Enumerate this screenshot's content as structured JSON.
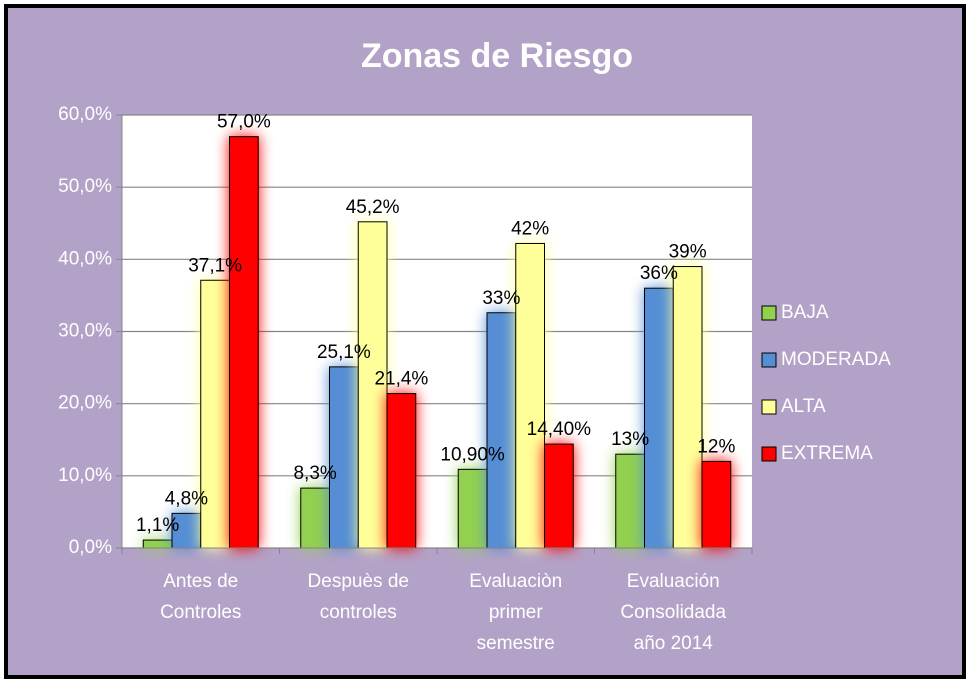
{
  "chart_data": {
    "type": "bar",
    "title": "Zonas de Riesgo",
    "categories": [
      "Antes de Controles",
      "Despuès de controles",
      "Evaluaciòn primer semestre",
      "Evaluación Consolidada año 2014"
    ],
    "series": [
      {
        "name": "BAJA",
        "color": "#92d050",
        "values": [
          1.1,
          8.3,
          10.9,
          13
        ],
        "value_labels": [
          "1,1%",
          "8,3%",
          "10,90%",
          "13%"
        ]
      },
      {
        "name": "MODERADA",
        "color": "#558ed5",
        "values": [
          4.8,
          25.1,
          32.6,
          36
        ],
        "value_labels": [
          "4,8%",
          "25,1%",
          "33%",
          "36%"
        ]
      },
      {
        "name": "ALTA",
        "color": "#ffff99",
        "values": [
          37.1,
          45.2,
          42.2,
          39
        ],
        "value_labels": [
          "37,1%",
          "45,2%",
          "42%",
          "39%"
        ]
      },
      {
        "name": "EXTREMA",
        "color": "#ff0000",
        "values": [
          57,
          21.4,
          14.4,
          12
        ],
        "value_labels": [
          "57,0%",
          "21,4%",
          "14,40%",
          "12%"
        ]
      }
    ],
    "ylim": [
      0,
      60
    ],
    "yticks": [
      {
        "value": 0,
        "label": "0,0%"
      },
      {
        "value": 10,
        "label": "10,0%"
      },
      {
        "value": 20,
        "label": "20,0%"
      },
      {
        "value": 30,
        "label": "30,0%"
      },
      {
        "value": 40,
        "label": "40,0%"
      },
      {
        "value": 50,
        "label": "50,0%"
      },
      {
        "value": 60,
        "label": "60,0%"
      }
    ],
    "grid": true,
    "legend": "right"
  }
}
